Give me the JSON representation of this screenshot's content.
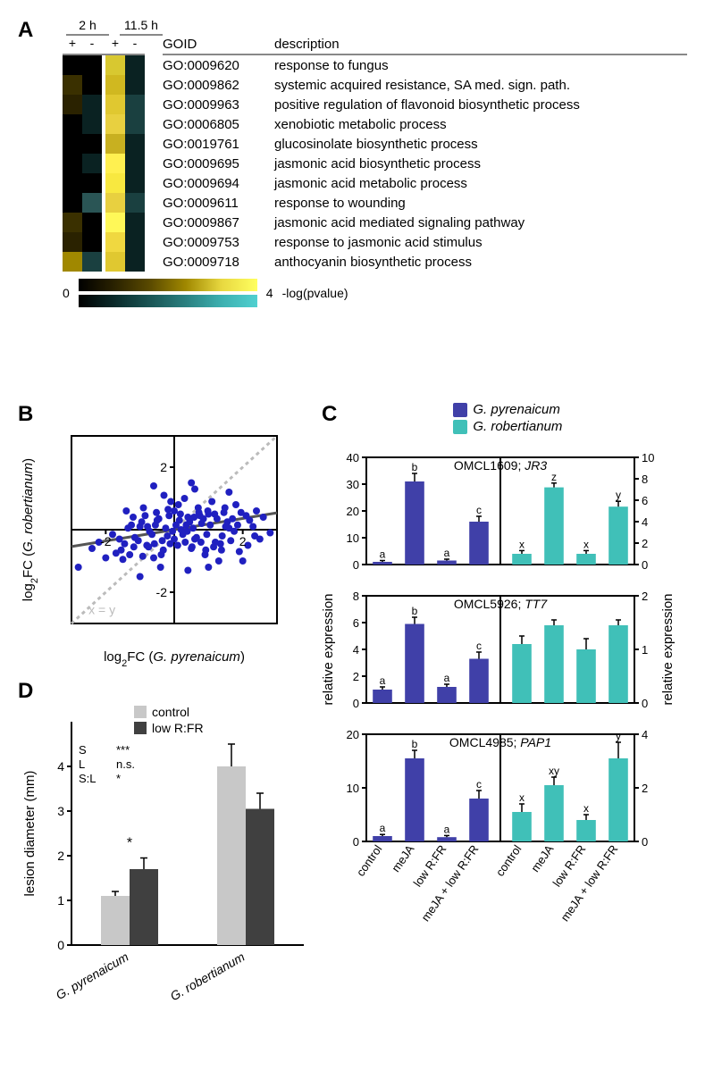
{
  "panelA": {
    "label": "A",
    "timepoints": [
      "2 h",
      "11.5 h"
    ],
    "columns": [
      "+",
      "-",
      "+",
      "-"
    ],
    "goid_header": "GOID",
    "desc_header": "description",
    "rows": [
      {
        "goid": "GO:0009620",
        "desc": "response to fungus",
        "colors": [
          "#000000",
          "#000000",
          "#d8c830",
          "#0a2222"
        ]
      },
      {
        "goid": "GO:0009862",
        "desc": "systemic acquired resistance, SA med. sign. path.",
        "colors": [
          "#3a3000",
          "#000000",
          "#d0b820",
          "#0a2222"
        ]
      },
      {
        "goid": "GO:0009963",
        "desc": "positive regulation of flavonoid biosynthetic process",
        "colors": [
          "#2a2200",
          "#0a2222",
          "#e0c830",
          "#1a4040"
        ]
      },
      {
        "goid": "GO:0006805",
        "desc": "xenobiotic metabolic process",
        "colors": [
          "#000000",
          "#0a2222",
          "#e8d040",
          "#1a4040"
        ]
      },
      {
        "goid": "GO:0019761",
        "desc": "glucosinolate biosynthetic process",
        "colors": [
          "#000000",
          "#000000",
          "#c8b020",
          "#0a2222"
        ]
      },
      {
        "goid": "GO:0009695",
        "desc": "jasmonic acid biosynthetic process",
        "colors": [
          "#000000",
          "#0a2222",
          "#fff050",
          "#0a2222"
        ]
      },
      {
        "goid": "GO:0009694",
        "desc": "jasmonic acid metabolic process",
        "colors": [
          "#000000",
          "#000000",
          "#f8e840",
          "#0a2222"
        ]
      },
      {
        "goid": "GO:0009611",
        "desc": "response to wounding",
        "colors": [
          "#000000",
          "#2a5555",
          "#e8d040",
          "#1a4040"
        ]
      },
      {
        "goid": "GO:0009867",
        "desc": "jasmonic acid mediated signaling pathway",
        "colors": [
          "#3a3000",
          "#000000",
          "#fff858",
          "#0a2222"
        ]
      },
      {
        "goid": "GO:0009753",
        "desc": "response to jasmonic acid stimulus",
        "colors": [
          "#2a2200",
          "#000000",
          "#f0d840",
          "#0a2222"
        ]
      },
      {
        "goid": "GO:0009718",
        "desc": "anthocyanin biosynthetic process",
        "colors": [
          "#a08800",
          "#1a4040",
          "#e0c830",
          "#0a2222"
        ]
      }
    ],
    "legend_min": "0",
    "legend_max": "4",
    "legend_label": "-log(pvalue)"
  },
  "panelB": {
    "label": "B",
    "xlabel": "log₂FC (G. pyrenaicum)",
    "ylabel": "log₂FC (G. robertianum)",
    "xlim": [
      -3,
      3
    ],
    "ylim": [
      -3,
      3
    ],
    "ticks": [
      -2,
      2
    ],
    "tick_label_2": "2",
    "tick_label_n2": "-2",
    "diagonal_label": "x = y",
    "point_color": "#2020c0",
    "points": [
      [
        2.8,
        -0.1
      ],
      [
        2.2,
        0.3
      ],
      [
        1.8,
        0.8
      ],
      [
        1.5,
        0.1
      ],
      [
        1.2,
        -0.4
      ],
      [
        1.0,
        0.5
      ],
      [
        0.8,
        0.2
      ],
      [
        0.6,
        -0.3
      ],
      [
        0.4,
        0.4
      ],
      [
        0.2,
        0.0
      ],
      [
        0.0,
        0.6
      ],
      [
        -0.2,
        -0.2
      ],
      [
        -0.5,
        0.3
      ],
      [
        -0.8,
        -0.5
      ],
      [
        -1.0,
        0.1
      ],
      [
        -1.3,
        -0.8
      ],
      [
        -1.6,
        -0.3
      ],
      [
        -2.0,
        -0.9
      ],
      [
        -2.4,
        -0.6
      ],
      [
        2.0,
        -1.0
      ],
      [
        1.6,
        1.2
      ],
      [
        0.9,
        -0.8
      ],
      [
        0.3,
        1.0
      ],
      [
        -0.4,
        -1.2
      ],
      [
        1.1,
        0.9
      ],
      [
        0.7,
        0.7
      ],
      [
        0.5,
        -0.6
      ],
      [
        -0.1,
        0.9
      ],
      [
        -0.6,
        -0.9
      ],
      [
        -1.2,
        0.4
      ],
      [
        1.4,
        -0.2
      ],
      [
        2.4,
        0.6
      ],
      [
        -2.8,
        -1.2
      ],
      [
        0.1,
        -0.5
      ],
      [
        0.15,
        0.3
      ],
      [
        0.35,
        0.15
      ],
      [
        -0.15,
        0.45
      ],
      [
        0.55,
        0.05
      ],
      [
        -0.35,
        -0.35
      ],
      [
        0.75,
        0.45
      ],
      [
        -0.55,
        0.15
      ],
      [
        0.95,
        -0.15
      ],
      [
        -0.75,
        -0.55
      ],
      [
        1.25,
        0.35
      ],
      [
        -0.95,
        0.25
      ],
      [
        1.45,
        0.55
      ],
      [
        -1.15,
        -0.25
      ],
      [
        1.65,
        -0.35
      ],
      [
        -1.35,
        0.05
      ],
      [
        1.85,
        0.15
      ],
      [
        -1.55,
        -0.65
      ],
      [
        2.1,
        0.45
      ],
      [
        -1.8,
        -0.15
      ],
      [
        2.5,
        -0.3
      ],
      [
        0.05,
        0.15
      ],
      [
        0.25,
        -0.15
      ],
      [
        -0.05,
        -0.05
      ],
      [
        0.45,
        0.25
      ],
      [
        -0.25,
        0.05
      ],
      [
        0.65,
        -0.25
      ],
      [
        -0.45,
        0.35
      ],
      [
        0.85,
        0.35
      ],
      [
        -0.65,
        -0.15
      ],
      [
        1.05,
        0.15
      ],
      [
        -0.85,
        0.45
      ],
      [
        1.35,
        -0.45
      ],
      [
        -1.05,
        -0.35
      ],
      [
        1.55,
        0.25
      ],
      [
        -1.25,
        0.15
      ],
      [
        1.75,
        -0.05
      ],
      [
        -1.45,
        -0.45
      ],
      [
        1.95,
        0.55
      ],
      [
        -1.7,
        -0.75
      ],
      [
        2.3,
        0.1
      ],
      [
        0.0,
        -0.3
      ],
      [
        0.18,
        0.5
      ],
      [
        -0.12,
        -0.45
      ],
      [
        0.38,
        -0.05
      ],
      [
        0.58,
        0.4
      ],
      [
        -0.32,
        -0.65
      ],
      [
        0.78,
        -0.4
      ],
      [
        -0.52,
        0.55
      ],
      [
        0.98,
        0.6
      ],
      [
        -0.72,
        -0.05
      ],
      [
        1.15,
        -0.55
      ],
      [
        -0.92,
        -0.85
      ],
      [
        1.48,
        0.7
      ],
      [
        -1.18,
        -0.55
      ],
      [
        1.7,
        0.35
      ],
      [
        -1.5,
        -0.95
      ],
      [
        2.15,
        -0.5
      ],
      [
        2.6,
        0.4
      ],
      [
        -2.2,
        -0.4
      ],
      [
        0.12,
        0.8
      ],
      [
        0.32,
        -0.4
      ],
      [
        -0.18,
        0.65
      ],
      [
        0.52,
        -0.55
      ],
      [
        -0.38,
        -0.8
      ],
      [
        0.72,
        0.55
      ],
      [
        -0.58,
        -0.45
      ],
      [
        0.92,
        -0.65
      ],
      [
        -0.78,
        0.1
      ],
      [
        1.18,
        0.5
      ],
      [
        1.38,
        -0.65
      ],
      [
        1.6,
        0.05
      ],
      [
        1.9,
        -0.7
      ],
      [
        2.35,
        -0.2
      ],
      [
        -1.0,
        -1.5
      ],
      [
        0.6,
        1.3
      ],
      [
        -0.3,
        1.1
      ],
      [
        1.3,
        -1.0
      ],
      [
        -1.4,
        0.6
      ],
      [
        0.4,
        -1.3
      ],
      [
        -0.6,
        1.4
      ],
      [
        0.5,
        1.5
      ],
      [
        -0.9,
        0.7
      ],
      [
        1.0,
        -1.2
      ]
    ],
    "fit_slope": 0.18,
    "fit_intercept": 0.0
  },
  "panelC": {
    "label": "C",
    "species": [
      {
        "name": "G. pyrenaicum",
        "color": "#4040a8"
      },
      {
        "name": "G. robertianum",
        "color": "#40c0b8"
      }
    ],
    "ylabel": "relative expression",
    "xcats": [
      "control",
      "meJA",
      "low R:FR",
      "meJA + low R:FR"
    ],
    "charts": [
      {
        "title": "OMCL1609; JR3",
        "ylim_left": [
          0,
          40
        ],
        "yticks_left": [
          0,
          10,
          20,
          30,
          40
        ],
        "ylim_right": [
          0,
          10
        ],
        "yticks_right": [
          0,
          2,
          4,
          6,
          8,
          10
        ],
        "left": {
          "vals": [
            1,
            31,
            1.5,
            16
          ],
          "err": [
            0.5,
            3,
            0.5,
            2
          ],
          "lbl": [
            "a",
            "b",
            "a",
            "c"
          ]
        },
        "right": {
          "vals": [
            1.0,
            7.2,
            1.0,
            5.4
          ],
          "err": [
            0.3,
            0.4,
            0.3,
            0.5
          ],
          "lbl": [
            "x",
            "z",
            "x",
            "y"
          ]
        }
      },
      {
        "title": "OMCL5926; TT7",
        "ylim_left": [
          0,
          8
        ],
        "yticks_left": [
          0,
          2,
          4,
          6,
          8
        ],
        "ylim_right": [
          0,
          2
        ],
        "yticks_right": [
          0,
          1,
          2
        ],
        "left": {
          "vals": [
            1,
            5.9,
            1.2,
            3.3
          ],
          "err": [
            0.2,
            0.5,
            0.2,
            0.5
          ],
          "lbl": [
            "a",
            "b",
            "a",
            "c"
          ]
        },
        "right": {
          "vals": [
            1.1,
            1.45,
            1.0,
            1.45
          ],
          "err": [
            0.15,
            0.1,
            0.2,
            0.1
          ],
          "lbl": [
            "",
            "",
            "",
            ""
          ]
        }
      },
      {
        "title": "OMCL4985; PAP1",
        "ylim_left": [
          0,
          20
        ],
        "yticks_left": [
          0,
          10,
          20
        ],
        "ylim_right": [
          0,
          4
        ],
        "yticks_right": [
          0,
          2,
          4
        ],
        "left": {
          "vals": [
            1,
            15.5,
            0.8,
            8
          ],
          "err": [
            0.3,
            1.5,
            0.3,
            1.5
          ],
          "lbl": [
            "a",
            "b",
            "a",
            "c"
          ]
        },
        "right": {
          "vals": [
            1.1,
            2.1,
            0.8,
            3.1
          ],
          "err": [
            0.3,
            0.3,
            0.2,
            0.6
          ],
          "lbl": [
            "x",
            "xy",
            "x",
            "y"
          ]
        }
      }
    ]
  },
  "panelD": {
    "label": "D",
    "legend": [
      {
        "name": "control",
        "color": "#c8c8c8"
      },
      {
        "name": "low R:FR",
        "color": "#404040"
      }
    ],
    "ylabel": "lesion diameter (mm)",
    "ylim": [
      0,
      5
    ],
    "yticks": [
      0,
      1,
      2,
      3,
      4
    ],
    "stats": [
      {
        "k": "S",
        "v": "***"
      },
      {
        "k": "L",
        "v": "n.s."
      },
      {
        "k": "S:L",
        "v": "*"
      }
    ],
    "groups": [
      {
        "name": "G. pyrenaicum",
        "vals": [
          1.1,
          1.7
        ],
        "err": [
          0.1,
          0.25
        ],
        "sig": "*"
      },
      {
        "name": "G. robertianum",
        "vals": [
          4.0,
          3.05
        ],
        "err": [
          0.5,
          0.35
        ],
        "sig": ""
      }
    ]
  }
}
